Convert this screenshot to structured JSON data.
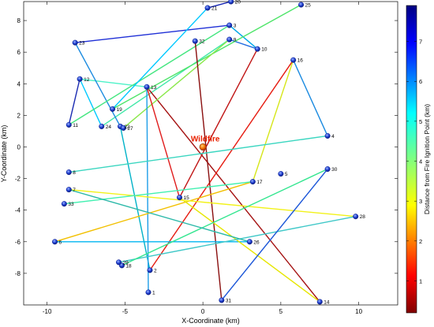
{
  "chart_data": {
    "type": "scatter",
    "title": "",
    "xlabel": "X-Coordinate (km)",
    "ylabel": "Y-Coordinate (km)",
    "xlim": [
      -11.5,
      12.5
    ],
    "ylim": [
      -10,
      9.2
    ],
    "xticks": [
      -10,
      -5,
      0,
      5,
      10
    ],
    "yticks": [
      -8,
      -6,
      -4,
      -2,
      0,
      2,
      4,
      6,
      8
    ],
    "grid": false,
    "colormap": "jet (reversed: red = near, dark blue = far)",
    "colorbar": {
      "label": "Distance from Fire Ignition Point (km)",
      "min": 0.2,
      "max": 7.9,
      "ticks": [
        1,
        2,
        3,
        4,
        5,
        6,
        7
      ],
      "placement": "right"
    },
    "ignition": {
      "label": "Wildfire",
      "x": 0,
      "y": 0,
      "color": "#e83a00"
    },
    "points": [
      {
        "id": "1",
        "x": -3.5,
        "y": -9.2
      },
      {
        "id": "2",
        "x": -3.4,
        "y": -7.8
      },
      {
        "id": "3",
        "x": 1.7,
        "y": 7.7
      },
      {
        "id": "4",
        "x": 8.0,
        "y": 0.7
      },
      {
        "id": "5",
        "x": 5.0,
        "y": -1.7
      },
      {
        "id": "6",
        "x": -9.5,
        "y": -6.0
      },
      {
        "id": "7",
        "x": -8.6,
        "y": -2.7
      },
      {
        "id": "8",
        "x": -8.6,
        "y": -1.6
      },
      {
        "id": "9",
        "x": 1.7,
        "y": 6.8
      },
      {
        "id": "10",
        "x": 3.5,
        "y": 6.2
      },
      {
        "id": "11",
        "x": -8.6,
        "y": 1.4
      },
      {
        "id": "12",
        "x": -7.9,
        "y": 4.3
      },
      {
        "id": "13",
        "x": -3.6,
        "y": 3.8
      },
      {
        "id": "14",
        "x": 7.5,
        "y": -9.8
      },
      {
        "id": "15",
        "x": -1.5,
        "y": -3.2
      },
      {
        "id": "16",
        "x": 5.8,
        "y": 5.5
      },
      {
        "id": "17",
        "x": 3.2,
        "y": -2.2
      },
      {
        "id": "18",
        "x": -5.2,
        "y": -7.5
      },
      {
        "id": "19",
        "x": -5.8,
        "y": 2.4
      },
      {
        "id": "20",
        "x": 1.8,
        "y": 9.2
      },
      {
        "id": "21",
        "x": 0.3,
        "y": 8.8
      },
      {
        "id": "22",
        "x": -5.3,
        "y": 1.3
      },
      {
        "id": "23",
        "x": -8.2,
        "y": 6.6
      },
      {
        "id": "24",
        "x": -6.5,
        "y": 1.3
      },
      {
        "id": "25",
        "x": 6.3,
        "y": 9.0
      },
      {
        "id": "26",
        "x": 3.0,
        "y": -6.0
      },
      {
        "id": "27",
        "x": -5.1,
        "y": 1.2
      },
      {
        "id": "28",
        "x": 9.8,
        "y": -4.4
      },
      {
        "id": "29",
        "x": -5.4,
        "y": -7.3
      },
      {
        "id": "30",
        "x": 8.0,
        "y": -1.4
      },
      {
        "id": "31",
        "x": 1.2,
        "y": -9.7
      },
      {
        "id": "32",
        "x": -0.5,
        "y": 6.7
      },
      {
        "id": "33",
        "x": -8.9,
        "y": -3.6
      }
    ],
    "routes": [
      {
        "from": "23",
        "to": "3",
        "color": "#1e2fd6"
      },
      {
        "from": "3",
        "to": "10",
        "color": "#00a6e8"
      },
      {
        "from": "10",
        "to": "9",
        "color": "#1e6be0"
      },
      {
        "from": "9",
        "to": "24",
        "color": "#41e8a8"
      },
      {
        "from": "24",
        "to": "12",
        "color": "#00c9ff"
      },
      {
        "from": "12",
        "to": "13",
        "color": "#4df2c8"
      },
      {
        "from": "13",
        "to": "14",
        "color": "#a41010"
      },
      {
        "from": "23",
        "to": "22",
        "color": "#1c8be0"
      },
      {
        "from": "22",
        "to": "2",
        "color": "#00b2c8"
      },
      {
        "from": "2",
        "to": "16",
        "color": "#e61b10"
      },
      {
        "from": "11",
        "to": "12",
        "color": "#1a2bb2"
      },
      {
        "from": "11",
        "to": "3",
        "color": "#44e680"
      },
      {
        "from": "21",
        "to": "20",
        "color": "#1020b2"
      },
      {
        "from": "21",
        "to": "19",
        "color": "#00c8ff"
      },
      {
        "from": "19",
        "to": "25",
        "color": "#4fe56a"
      },
      {
        "from": "27",
        "to": "9",
        "color": "#8ae84a"
      },
      {
        "from": "32",
        "to": "31",
        "color": "#8a0f0f"
      },
      {
        "from": "1",
        "to": "13",
        "color": "#1f9ee8"
      },
      {
        "from": "13",
        "to": "15",
        "color": "#e01c1c"
      },
      {
        "from": "15",
        "to": "10",
        "color": "#c01515"
      },
      {
        "from": "16",
        "to": "17",
        "color": "#d6e61a"
      },
      {
        "from": "17",
        "to": "6",
        "color": "#f2c000"
      },
      {
        "from": "6",
        "to": "26",
        "color": "#00b4f0"
      },
      {
        "from": "15",
        "to": "14",
        "color": "#e6e600"
      },
      {
        "from": "7",
        "to": "28",
        "color": "#f2f21a"
      },
      {
        "from": "29",
        "to": "28",
        "color": "#40c8c8"
      },
      {
        "from": "18",
        "to": "30",
        "color": "#34e690"
      },
      {
        "from": "33",
        "to": "17",
        "color": "#40f0b0"
      },
      {
        "from": "8",
        "to": "4",
        "color": "#3ad6c0"
      },
      {
        "from": "30",
        "to": "31",
        "color": "#1a55d8"
      },
      {
        "from": "4",
        "to": "16",
        "color": "#1a8ae0"
      },
      {
        "from": "26",
        "to": "7",
        "color": "#2ab8a8"
      }
    ]
  }
}
